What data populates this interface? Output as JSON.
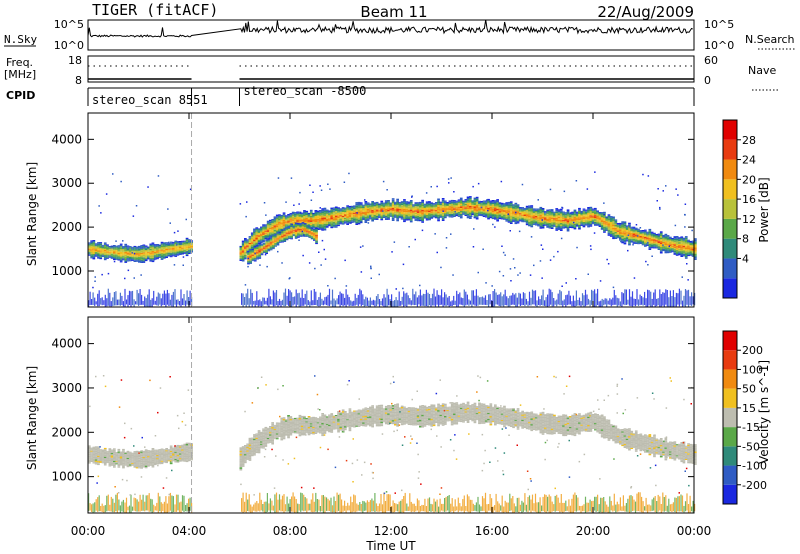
{
  "header": {
    "radar": "TIGER (fitACF)",
    "beam": "Beam 11",
    "date": "22/Aug/2009"
  },
  "top_panels": {
    "nsky_label": "N.Sky",
    "nsky_ticks": [
      "10^5",
      "10^0"
    ],
    "nsearch_label": "N.Search",
    "nsearch_ticks": [
      "10^5",
      "10^0"
    ],
    "freq_label_1": "Freq.",
    "freq_label_2": "[MHz]",
    "freq_ticks": [
      "18",
      "8"
    ],
    "nave_label": "Nave",
    "nave_ticks": [
      "60",
      "0"
    ],
    "cpid_label": "CPID",
    "cpid_segments": [
      {
        "label": "stereo_scan 8551",
        "start_hr": 0.0,
        "end_hr": 4.1
      },
      {
        "label": "stereo_scan -8500",
        "start_hr": 6.0,
        "end_hr": 24.0
      }
    ],
    "data_gap": {
      "start_hr": 4.1,
      "end_hr": 6.0
    }
  },
  "time_axis": {
    "title": "Time UT",
    "ticks": [
      "00:00",
      "04:00",
      "08:00",
      "12:00",
      "16:00",
      "20:00",
      "00:00"
    ],
    "tick_hours": [
      0,
      4,
      8,
      12,
      16,
      20,
      24
    ]
  },
  "chart_data": [
    {
      "type": "heatmap",
      "name": "power",
      "ylabel": "Slant Range [km]",
      "yticks": [
        "4000",
        "3000",
        "2000",
        "1000"
      ],
      "ytick_values": [
        4000,
        3000,
        2000,
        1000
      ],
      "ylim": [
        180,
        4600
      ],
      "xlim": [
        0,
        24
      ],
      "colorbar_title": "Power [dB]",
      "colorbar_ticks": [
        "28",
        "24",
        "20",
        "16",
        "12",
        "8",
        "4"
      ],
      "colorbar_values": [
        28,
        24,
        20,
        16,
        12,
        8,
        4
      ],
      "color_range": [
        0,
        30
      ],
      "colors": [
        "#1a28e0",
        "#2f5cc4",
        "#2f8a7a",
        "#5aa848",
        "#b8c23a",
        "#f0c020",
        "#f08a10",
        "#e83b10",
        "#e00000"
      ],
      "bands": [
        {
          "start_hr": 0.0,
          "end_hr": 4.1,
          "range_km": [
            [
              0,
              1500
            ],
            [
              1,
              1420
            ],
            [
              2,
              1380
            ],
            [
              3,
              1470
            ],
            [
              4,
              1560
            ],
            [
              4.1,
              1560
            ]
          ],
          "width_km": 360,
          "peak_db": 24
        },
        {
          "start_hr": 6.0,
          "end_hr": 24.0,
          "range_km": [
            [
              6,
              1400
            ],
            [
              6.5,
              1700
            ],
            [
              7,
              1900
            ],
            [
              7.5,
              2050
            ],
            [
              8,
              2150
            ],
            [
              9,
              2150
            ],
            [
              10,
              2250
            ],
            [
              11,
              2350
            ],
            [
              12,
              2400
            ],
            [
              13,
              2350
            ],
            [
              14,
              2400
            ],
            [
              15,
              2450
            ],
            [
              16,
              2400
            ],
            [
              17,
              2300
            ],
            [
              18,
              2200
            ],
            [
              19,
              2150
            ],
            [
              20,
              2250
            ],
            [
              21,
              1900
            ],
            [
              22,
              1750
            ],
            [
              23,
              1600
            ],
            [
              24,
              1500
            ]
          ],
          "width_km": 420,
          "peak_db": 26
        },
        {
          "start_hr": 6.3,
          "end_hr": 9.0,
          "range_km": [
            [
              6.3,
              1300
            ],
            [
              7,
              1550
            ],
            [
              7.5,
              1750
            ],
            [
              8,
              1900
            ],
            [
              8.5,
              1950
            ],
            [
              9,
              1800
            ]
          ],
          "width_km": 300,
          "peak_db": 28
        }
      ],
      "near_range_clutter_km": [
        180,
        600
      ]
    },
    {
      "type": "heatmap",
      "name": "velocity",
      "ylabel": "Slant Range [km]",
      "yticks": [
        "4000",
        "3000",
        "2000",
        "1000"
      ],
      "ytick_values": [
        4000,
        3000,
        2000,
        1000
      ],
      "ylim": [
        180,
        4600
      ],
      "xlim": [
        0,
        24
      ],
      "colorbar_title": "Velocity [m s^-1]",
      "colorbar_ticks": [
        "200",
        "100",
        "50",
        "15",
        "-15",
        "-50",
        "-100",
        "-200"
      ],
      "colorbar_values": [
        200,
        100,
        50,
        15,
        -15,
        -50,
        -100,
        -200
      ],
      "colors": [
        "#1a28e0",
        "#2f5cc4",
        "#2f8a7a",
        "#5aa848",
        "#bdbdb0",
        "#f0c020",
        "#f08a10",
        "#e83b10",
        "#e00000"
      ],
      "ground_scatter_color": "#bdbdb0",
      "bands": [
        {
          "start_hr": 0.0,
          "end_hr": 4.1,
          "range_km": [
            [
              0,
              1500
            ],
            [
              1,
              1420
            ],
            [
              2,
              1380
            ],
            [
              3,
              1470
            ],
            [
              4,
              1560
            ],
            [
              4.1,
              1560
            ]
          ],
          "width_km": 360
        },
        {
          "start_hr": 6.0,
          "end_hr": 24.0,
          "range_km": [
            [
              6,
              1400
            ],
            [
              6.5,
              1700
            ],
            [
              7,
              1900
            ],
            [
              7.5,
              2050
            ],
            [
              8,
              2150
            ],
            [
              9,
              2150
            ],
            [
              10,
              2250
            ],
            [
              11,
              2350
            ],
            [
              12,
              2400
            ],
            [
              13,
              2350
            ],
            [
              14,
              2400
            ],
            [
              15,
              2450
            ],
            [
              16,
              2400
            ],
            [
              17,
              2300
            ],
            [
              18,
              2200
            ],
            [
              19,
              2150
            ],
            [
              20,
              2250
            ],
            [
              21,
              1900
            ],
            [
              22,
              1750
            ],
            [
              23,
              1600
            ],
            [
              24,
              1500
            ]
          ],
          "width_km": 420
        }
      ],
      "near_range_color": "#f0a020",
      "near_range_km": [
        180,
        650
      ]
    }
  ]
}
